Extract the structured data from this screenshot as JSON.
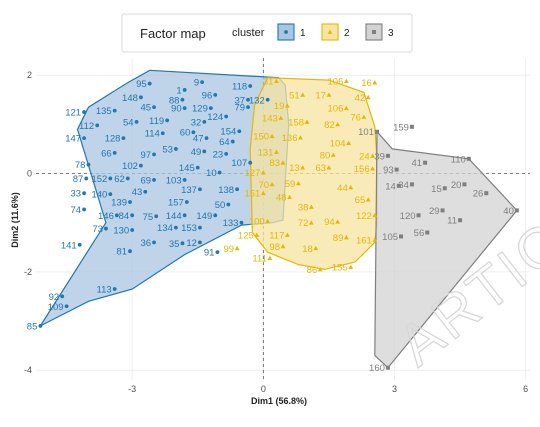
{
  "chart_data": {
    "type": "scatter",
    "title": "Factor map",
    "xlabel": "Dim1 (56.8%)",
    "ylabel": "Dim2 (11.6%)",
    "xlim": [
      -5.2,
      6.1
    ],
    "ylim": [
      -4.2,
      2.35
    ],
    "x_ticks": [
      -3,
      0,
      3,
      6
    ],
    "y_ticks": [
      -4,
      -2,
      0,
      2
    ],
    "grid": "minimal",
    "legend_title": "cluster",
    "legend_position": "top",
    "watermark": "ARTIC",
    "clusters": [
      {
        "name": "1",
        "color": "#1f77b4",
        "fill": "#a9c6e0",
        "marker": "circle",
        "hull": [
          [
            -5.1,
            -3.1
          ],
          [
            -4.0,
            -2.6
          ],
          [
            -3.0,
            -2.35
          ],
          [
            -1.8,
            -1.65
          ],
          [
            -0.5,
            -1.05
          ],
          [
            0.2,
            -1.0
          ],
          [
            0.45,
            -0.95
          ],
          [
            0.58,
            1.0
          ],
          [
            0.5,
            1.8
          ],
          [
            0.35,
            1.95
          ],
          [
            -2.6,
            2.1
          ],
          [
            -3.1,
            1.85
          ],
          [
            -4.0,
            1.35
          ],
          [
            -4.25,
            0.9
          ],
          [
            -3.6,
            -1.0
          ]
        ],
        "points": [
          {
            "label": "95",
            "x": -2.6,
            "y": 1.83
          },
          {
            "label": "9",
            "x": -1.4,
            "y": 1.86
          },
          {
            "label": "118",
            "x": -0.3,
            "y": 1.78
          },
          {
            "label": "1",
            "x": -1.8,
            "y": 1.7
          },
          {
            "label": "96",
            "x": -1.1,
            "y": 1.6
          },
          {
            "label": "148",
            "x": -2.8,
            "y": 1.55
          },
          {
            "label": "88",
            "x": -1.85,
            "y": 1.5
          },
          {
            "label": "37",
            "x": -0.35,
            "y": 1.5
          },
          {
            "label": "132",
            "x": 0.1,
            "y": 1.5
          },
          {
            "label": "45",
            "x": -2.5,
            "y": 1.35
          },
          {
            "label": "90",
            "x": -1.8,
            "y": 1.33
          },
          {
            "label": "129",
            "x": -1.2,
            "y": 1.33
          },
          {
            "label": "79",
            "x": -0.35,
            "y": 1.35
          },
          {
            "label": "121",
            "x": -4.1,
            "y": 1.25
          },
          {
            "label": "135",
            "x": -3.4,
            "y": 1.28
          },
          {
            "label": "124",
            "x": -0.85,
            "y": 1.16
          },
          {
            "label": "54",
            "x": -2.9,
            "y": 1.05
          },
          {
            "label": "119",
            "x": -2.2,
            "y": 1.08
          },
          {
            "label": "32",
            "x": -1.35,
            "y": 1.05
          },
          {
            "label": "112",
            "x": -3.8,
            "y": 0.98
          },
          {
            "label": "60",
            "x": -1.6,
            "y": 0.84
          },
          {
            "label": "154",
            "x": -0.55,
            "y": 0.86
          },
          {
            "label": "114",
            "x": -2.3,
            "y": 0.82
          },
          {
            "label": "147",
            "x": -4.1,
            "y": 0.72
          },
          {
            "label": "128",
            "x": -3.2,
            "y": 0.72
          },
          {
            "label": "47",
            "x": -1.3,
            "y": 0.72
          },
          {
            "label": "64",
            "x": -0.7,
            "y": 0.65
          },
          {
            "label": "53",
            "x": -2.0,
            "y": 0.5
          },
          {
            "label": "49",
            "x": -1.35,
            "y": 0.45
          },
          {
            "label": "23",
            "x": -0.85,
            "y": 0.4
          },
          {
            "label": "66",
            "x": -3.4,
            "y": 0.42
          },
          {
            "label": "97",
            "x": -2.5,
            "y": 0.39
          },
          {
            "label": "107",
            "x": -0.3,
            "y": 0.22
          },
          {
            "label": "78",
            "x": -4.0,
            "y": 0.18
          },
          {
            "label": "102",
            "x": -2.8,
            "y": 0.16
          },
          {
            "label": "145",
            "x": -1.5,
            "y": 0.12
          },
          {
            "label": "10",
            "x": -1.0,
            "y": 0.02
          },
          {
            "label": "87",
            "x": -4.05,
            "y": -0.1
          },
          {
            "label": "152",
            "x": -3.5,
            "y": -0.1
          },
          {
            "label": "62",
            "x": -3.1,
            "y": -0.1
          },
          {
            "label": "69",
            "x": -2.5,
            "y": -0.13
          },
          {
            "label": "103",
            "x": -1.8,
            "y": -0.13
          },
          {
            "label": "33",
            "x": -4.1,
            "y": -0.4
          },
          {
            "label": "140",
            "x": -3.5,
            "y": -0.42
          },
          {
            "label": "43",
            "x": -2.7,
            "y": -0.37
          },
          {
            "label": "137",
            "x": -1.45,
            "y": -0.32
          },
          {
            "label": "138",
            "x": -0.6,
            "y": -0.32
          },
          {
            "label": "139",
            "x": -3.05,
            "y": -0.58
          },
          {
            "label": "157",
            "x": -1.75,
            "y": -0.58
          },
          {
            "label": "50",
            "x": -0.8,
            "y": -0.63
          },
          {
            "label": "74",
            "x": -4.1,
            "y": -0.73
          },
          {
            "label": "146",
            "x": -3.35,
            "y": -0.85
          },
          {
            "label": "84",
            "x": -3.0,
            "y": -0.85
          },
          {
            "label": "75",
            "x": -2.45,
            "y": -0.87
          },
          {
            "label": "144",
            "x": -1.8,
            "y": -0.85
          },
          {
            "label": "149",
            "x": -1.1,
            "y": -0.85
          },
          {
            "label": "73",
            "x": -3.6,
            "y": -1.12
          },
          {
            "label": "130",
            "x": -3.0,
            "y": -1.15
          },
          {
            "label": "134",
            "x": -2.0,
            "y": -1.1
          },
          {
            "label": "153",
            "x": -1.45,
            "y": -1.1
          },
          {
            "label": "133",
            "x": -0.5,
            "y": -1.0
          },
          {
            "label": "141",
            "x": -4.2,
            "y": -1.45
          },
          {
            "label": "36",
            "x": -2.5,
            "y": -1.4
          },
          {
            "label": "35",
            "x": -1.85,
            "y": -1.42
          },
          {
            "label": "12",
            "x": -1.45,
            "y": -1.4
          },
          {
            "label": "81",
            "x": -3.05,
            "y": -1.58
          },
          {
            "label": "91",
            "x": -1.05,
            "y": -1.6
          },
          {
            "label": "113",
            "x": -3.4,
            "y": -2.35
          },
          {
            "label": "92",
            "x": -4.6,
            "y": -2.5
          },
          {
            "label": "109",
            "x": -4.5,
            "y": -2.7
          },
          {
            "label": "85",
            "x": -5.1,
            "y": -3.1
          }
        ]
      },
      {
        "name": "2",
        "color": "#e6b800",
        "fill": "#f6e4a0",
        "marker": "triangle",
        "hull": [
          [
            0.1,
            1.95
          ],
          [
            1.5,
            1.9
          ],
          [
            2.3,
            1.65
          ],
          [
            2.55,
            0.95
          ],
          [
            2.6,
            0.3
          ],
          [
            2.6,
            -1.0
          ],
          [
            2.55,
            -1.4
          ],
          [
            2.1,
            -1.8
          ],
          [
            1.4,
            -1.95
          ],
          [
            0.8,
            -1.85
          ],
          [
            0.1,
            -1.6
          ],
          [
            -0.25,
            -1.2
          ],
          [
            -0.3,
            0.5
          ],
          [
            -0.2,
            1.4
          ]
        ],
        "points": [
          {
            "label": "31",
            "x": 0.3,
            "y": 1.88
          },
          {
            "label": "106",
            "x": 1.9,
            "y": 1.88
          },
          {
            "label": "16",
            "x": 2.55,
            "y": 1.85
          },
          {
            "label": "51",
            "x": 0.9,
            "y": 1.6
          },
          {
            "label": "17",
            "x": 1.5,
            "y": 1.6
          },
          {
            "label": "42",
            "x": 2.4,
            "y": 1.55
          },
          {
            "label": "19",
            "x": 0.55,
            "y": 1.38
          },
          {
            "label": "106",
            "x": 1.9,
            "y": 1.33
          },
          {
            "label": "76",
            "x": 2.3,
            "y": 1.15
          },
          {
            "label": "143",
            "x": 0.4,
            "y": 1.13
          },
          {
            "label": "158",
            "x": 1.0,
            "y": 1.05
          },
          {
            "label": "82",
            "x": 1.7,
            "y": 1.0
          },
          {
            "label": "150",
            "x": 0.2,
            "y": 0.76
          },
          {
            "label": "136",
            "x": 0.85,
            "y": 0.73
          },
          {
            "label": "104",
            "x": 1.95,
            "y": 0.62
          },
          {
            "label": "131",
            "x": 0.3,
            "y": 0.44
          },
          {
            "label": "80",
            "x": 1.6,
            "y": 0.38
          },
          {
            "label": "24",
            "x": 2.5,
            "y": 0.36
          },
          {
            "label": "83",
            "x": 0.45,
            "y": 0.22
          },
          {
            "label": "63",
            "x": 1.5,
            "y": 0.12
          },
          {
            "label": "156",
            "x": 2.5,
            "y": 0.1
          },
          {
            "label": "127",
            "x": 0.0,
            "y": 0.02
          },
          {
            "label": "13",
            "x": 0.9,
            "y": 0.12
          },
          {
            "label": "59",
            "x": 0.8,
            "y": -0.2
          },
          {
            "label": "70",
            "x": 0.2,
            "y": -0.22
          },
          {
            "label": "44",
            "x": 2.0,
            "y": -0.28
          },
          {
            "label": "151",
            "x": 0.0,
            "y": -0.4
          },
          {
            "label": "48",
            "x": 0.6,
            "y": -0.48
          },
          {
            "label": "65",
            "x": 2.4,
            "y": -0.53
          },
          {
            "label": "38",
            "x": 1.1,
            "y": -0.68
          },
          {
            "label": "100",
            "x": 0.1,
            "y": -0.97
          },
          {
            "label": "72",
            "x": 1.1,
            "y": -1.0
          },
          {
            "label": "94",
            "x": 1.7,
            "y": -0.98
          },
          {
            "label": "125",
            "x": -0.15,
            "y": -1.25
          },
          {
            "label": "117",
            "x": 0.55,
            "y": -1.25
          },
          {
            "label": "89",
            "x": 1.9,
            "y": -1.3
          },
          {
            "label": "99",
            "x": -0.6,
            "y": -1.52
          },
          {
            "label": "98",
            "x": 0.45,
            "y": -1.48
          },
          {
            "label": "18",
            "x": 1.2,
            "y": -1.52
          },
          {
            "label": "111",
            "x": 0.15,
            "y": -1.72
          },
          {
            "label": "161",
            "x": 2.55,
            "y": -1.35
          },
          {
            "label": "86",
            "x": 1.3,
            "y": -1.95
          },
          {
            "label": "155",
            "x": 2.0,
            "y": -1.9
          },
          {
            "label": "122",
            "x": 2.55,
            "y": -0.85
          }
        ]
      },
      {
        "name": "3",
        "color": "#7f7f7f",
        "fill": "#d3d3d3",
        "marker": "square",
        "hull": [
          [
            2.6,
            0.85
          ],
          [
            2.95,
            0.5
          ],
          [
            4.7,
            0.3
          ],
          [
            5.8,
            -0.75
          ],
          [
            2.85,
            -3.95
          ],
          [
            2.55,
            -3.7
          ]
        ],
        "points": [
          {
            "label": "101",
            "x": 2.6,
            "y": 0.85
          },
          {
            "label": "159",
            "x": 3.4,
            "y": 0.95
          },
          {
            "label": "110",
            "x": 4.7,
            "y": 0.3
          },
          {
            "label": "39",
            "x": 2.85,
            "y": 0.36
          },
          {
            "label": "41",
            "x": 3.7,
            "y": 0.22
          },
          {
            "label": "93",
            "x": 3.05,
            "y": 0.08
          },
          {
            "label": "14",
            "x": 3.1,
            "y": -0.25
          },
          {
            "label": "34",
            "x": 3.4,
            "y": -0.22
          },
          {
            "label": "15",
            "x": 4.15,
            "y": -0.3
          },
          {
            "label": "20",
            "x": 4.6,
            "y": -0.22
          },
          {
            "label": "26",
            "x": 5.1,
            "y": -0.4
          },
          {
            "label": "29",
            "x": 4.1,
            "y": -0.75
          },
          {
            "label": "120",
            "x": 3.55,
            "y": -0.85
          },
          {
            "label": "11",
            "x": 4.5,
            "y": -0.95
          },
          {
            "label": "40",
            "x": 5.8,
            "y": -0.75
          },
          {
            "label": "56",
            "x": 3.75,
            "y": -1.2
          },
          {
            "label": "105",
            "x": 3.15,
            "y": -1.28
          },
          {
            "label": "160",
            "x": 2.85,
            "y": -3.95
          }
        ]
      }
    ]
  }
}
